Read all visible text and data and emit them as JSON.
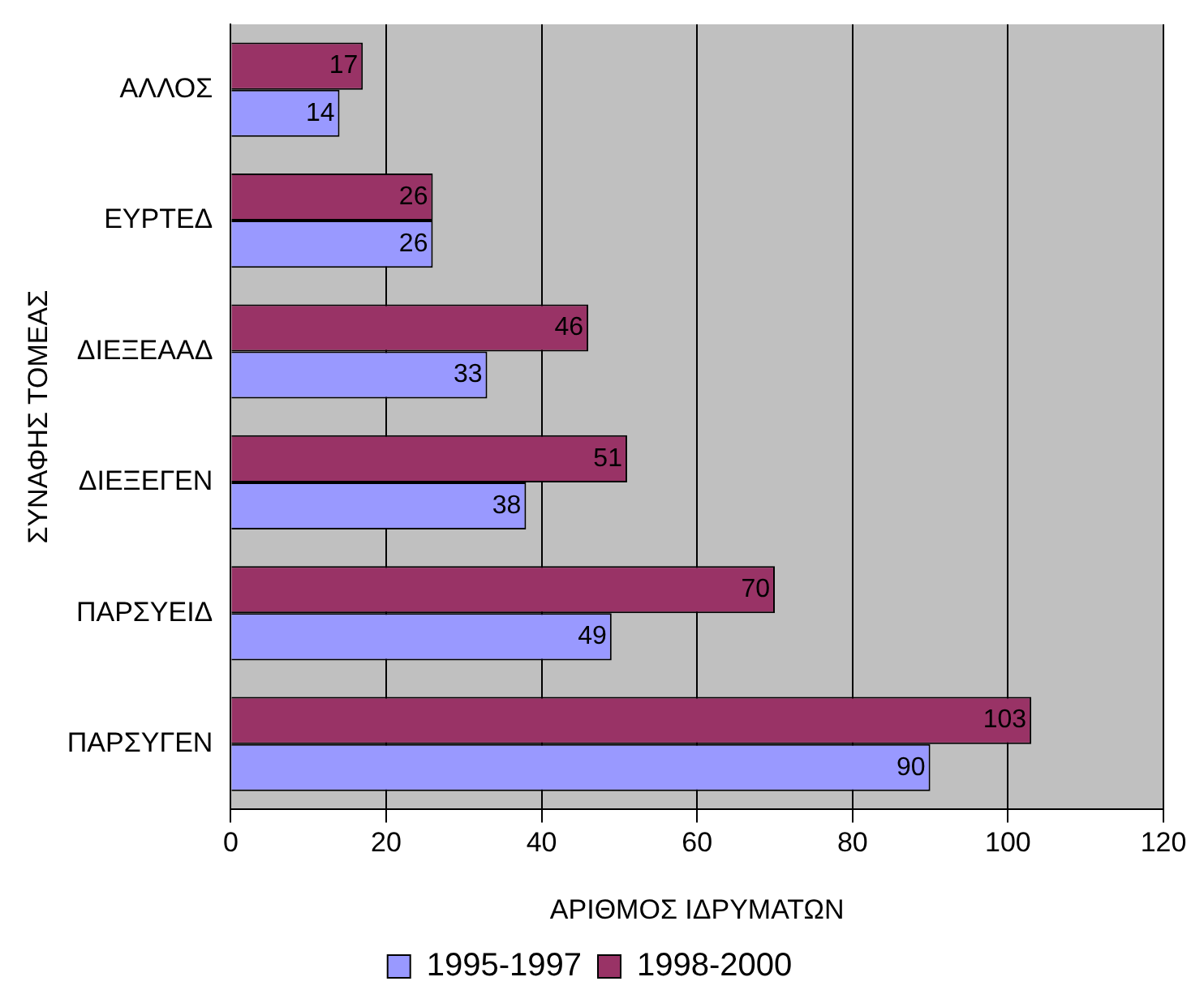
{
  "chart_data": {
    "type": "bar",
    "orientation": "horizontal",
    "xlabel": "ΑΡΙΘΜΟΣ ΙΔΡΥΜΑΤΩΝ",
    "ylabel": "ΣΥΝΑΦΗΣ ΤΟΜΕΑΣ",
    "categories": [
      "ΑΛΛΟΣ",
      "ΕΥΡΤΕΔ",
      "ΔΙΕΞΕΑΑΔ",
      "ΔΙΕΞΕΓΕΝ",
      "ΠΑΡΣΥΕΙΔ",
      "ΠΑΡΣΥΓΕΝ"
    ],
    "series": [
      {
        "name": "1995-1997",
        "color": "#9999ff",
        "values": [
          14,
          26,
          33,
          38,
          49,
          90
        ]
      },
      {
        "name": "1998-2000",
        "color": "#993366",
        "values": [
          17,
          26,
          46,
          51,
          70,
          103
        ]
      }
    ],
    "xlim": [
      0,
      120
    ],
    "xticks": [
      0,
      20,
      40,
      60,
      80,
      100,
      120
    ],
    "grid": "x",
    "legend": "bottom",
    "data_labels": true
  }
}
